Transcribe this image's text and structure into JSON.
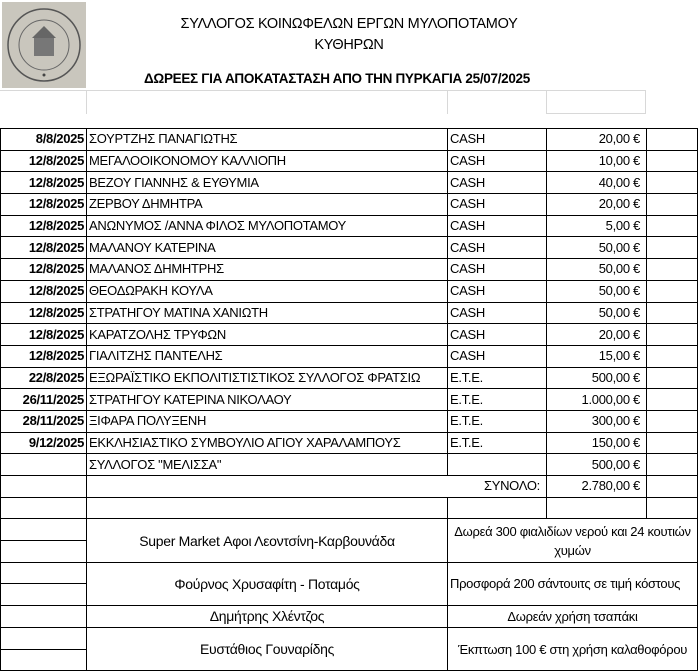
{
  "header": {
    "title_line1": "ΣΥΛΛΟΓΟΣ ΚΟΙΝΩΦΕΛΩΝ ΕΡΓΩΝ ΜΥΛΟΠΟΤΑΜΟΥ",
    "title_line2": "ΚΥΘΗΡΩΝ",
    "subtitle": "ΔΩΡΕΕΣ ΓΙΑ ΑΠΟΚΑΤΑΣΤΑΣΗ ΑΠΟ ΤΗΝ ΠΥΡΚΑΓΙΑ 25/07/2025",
    "stamp_text": "ΣΥΛΛΟΓΟΣ ΚΟΙΝΩΦΕΛΩΝ ΕΡΓΩΝ ΜΥΛΟΠΟΤΑΜΟΥ ΚΥΘΗΡΩΝ"
  },
  "donations": [
    {
      "date": "8/8/2025",
      "name": "ΣΟΥΡΤΖΗΣ ΠΑΝΑΓΙΩΤΗΣ",
      "method": "CASH",
      "amount": "20,00 €"
    },
    {
      "date": "12/8/2025",
      "name": "ΜΕΓΑΛΟΟΙΚΟΝΟΜΟΥ ΚΑΛΛΙΟΠΗ",
      "method": "CASH",
      "amount": "10,00 €"
    },
    {
      "date": "12/8/2025",
      "name": "ΒΕΖΟΥ ΓΙΑΝΝΗΣ & ΕΥΘΥΜΙΑ",
      "method": "CASH",
      "amount": "40,00 €"
    },
    {
      "date": "12/8/2025",
      "name": "ΖΕΡΒΟΥ ΔΗΜΗΤΡΑ",
      "method": "CASH",
      "amount": "20,00 €"
    },
    {
      "date": "12/8/2025",
      "name": "ΑΝΩΝΥΜΟΣ /ΑΝΝΑ ΦΙΛΟΣ ΜΥΛΟΠΟΤΑΜΟΥ",
      "method": "CASH",
      "amount": "5,00 €"
    },
    {
      "date": "12/8/2025",
      "name": "ΜΑΛΑΝΟΥ ΚΑΤΕΡΙΝΑ",
      "method": "CASH",
      "amount": "50,00 €"
    },
    {
      "date": "12/8/2025",
      "name": "ΜΑΛΑΝΟΣ ΔΗΜΗΤΡΗΣ",
      "method": "CASH",
      "amount": "50,00 €"
    },
    {
      "date": "12/8/2025",
      "name": "ΘΕΟΔΩΡΑΚΗ ΚΟΥΛΑ",
      "method": "CASH",
      "amount": "50,00 €"
    },
    {
      "date": "12/8/2025",
      "name": "ΣΤΡΑΤΗΓΟΥ ΜΑΤΙΝΑ ΧΑΝΙΩΤΗ",
      "method": "CASH",
      "amount": "50,00 €"
    },
    {
      "date": "12/8/2025",
      "name": "ΚΑΡΑΤΖΟΛΗΣ ΤΡΥΦΩΝ",
      "method": "CASH",
      "amount": "20,00 €"
    },
    {
      "date": "12/8/2025",
      "name": "ΓΙΑΛΙΤΖΗΣ ΠΑΝΤΕΛΗΣ",
      "method": "CASH",
      "amount": "15,00 €"
    },
    {
      "date": "22/8/2025",
      "name": "ΕΞΩΡΑΪΣΤΙΚΟ ΕΚΠΟΛΙΤΙΣΤΙΣΤΙΚΟΣ ΣΥΛΛΟΓΟΣ ΦΡΑΤΣΙΩ",
      "method": "Ε.Τ.Ε.",
      "amount": "500,00 €"
    },
    {
      "date": "26/11/2025",
      "name": "ΣΤΡΑΤΗΓΟΥ ΚΑΤΕΡΙΝΑ ΝΙΚΟΛΑΟΥ",
      "method": "Ε.Τ.Ε.",
      "amount": "1.000,00 €"
    },
    {
      "date": "28/11/2025",
      "name": "ΞΙΦΑΡΑ ΠΟΛΥΞΕΝΗ",
      "method": "Ε.Τ.Ε.",
      "amount": "300,00 €"
    },
    {
      "date": "9/12/2025",
      "name": "ΕΚΚΛΗΣΙΑΣΤΙΚΟ ΣΥΜΒΟΥΛΙΟ ΑΓΙΟΥ ΧΑΡΑΛΑΜΠΟΥΣ",
      "method": "Ε.Τ.Ε.",
      "amount": "150,00 €"
    },
    {
      "date": "",
      "name": "ΣΥΛΛΟΓΟΣ \"ΜΕΛΙΣΣΑ\"",
      "method": "",
      "amount": "500,00 €"
    }
  ],
  "total": {
    "label": "ΣΥΝΟΛΟ:",
    "amount": "2.780,00 €"
  },
  "in_kind": [
    {
      "donor": "Super Market Αφοι Λεοντσίνη-Καρβουνάδα",
      "description": "Δωρεά 300 φιαλιδίων νερού και 24 κουτιών χυμών"
    },
    {
      "donor": "Φούρνος Χρυσαφίτη - Ποταμός",
      "description": "Προσφορά 200 σάντουιτς σε τιμή κόστους"
    },
    {
      "donor": "Δημήτρης Χλέντζος",
      "description": "Δωρεάν χρήση τσαπάκι"
    },
    {
      "donor": "Ευστάθιος Γουναρίδης",
      "description": "Έκπτωση 100 € στη χρήση καλαθοφόρου"
    }
  ]
}
